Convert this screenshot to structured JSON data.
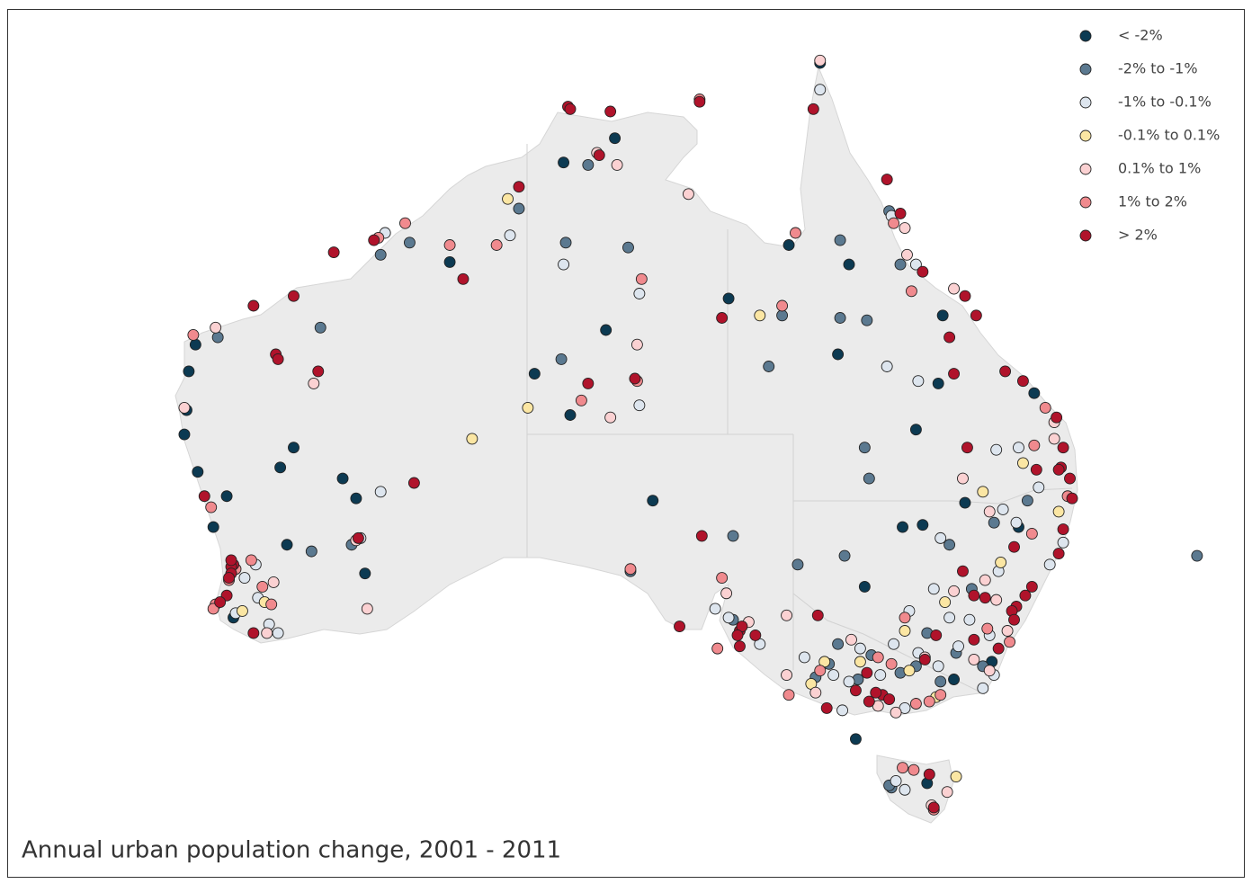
{
  "map": {
    "title": "Annual urban population change, 2001 - 2011",
    "legend": [
      {
        "label": "< -2%",
        "color": "#0c3a52",
        "points": [
          [
            114.2,
            -22.3
          ],
          [
            113.9,
            -23.4
          ],
          [
            113.8,
            -25.0
          ],
          [
            113.7,
            -26.0
          ],
          [
            114.3,
            -27.7
          ],
          [
            118.6,
            -26.6
          ],
          [
            118.0,
            -27.5
          ],
          [
            120.8,
            -28.0
          ],
          [
            121.4,
            -28.9
          ],
          [
            118.3,
            -31.0
          ],
          [
            121.8,
            -32.3
          ],
          [
            125.6,
            -18.9
          ],
          [
            129.4,
            -23.5
          ],
          [
            131.0,
            -25.2
          ],
          [
            134.7,
            -29.0
          ],
          [
            132.6,
            -21.7
          ],
          [
            138.1,
            -20.4
          ],
          [
            133.0,
            -13.8
          ],
          [
            130.7,
            -14.8
          ],
          [
            142.2,
            -10.7
          ],
          [
            143.5,
            -19.0
          ],
          [
            140.8,
            -18.2
          ],
          [
            143.0,
            -22.7
          ],
          [
            146.5,
            -25.8
          ],
          [
            145.9,
            -30.2
          ],
          [
            146.8,
            -30.1
          ],
          [
            148.7,
            -29.1
          ],
          [
            151.1,
            -30.2
          ],
          [
            144.2,
            -32.9
          ],
          [
            151.8,
            -24.3
          ],
          [
            147.7,
            -21.1
          ],
          [
            143.8,
            -39.8
          ],
          [
            148.2,
            -37.1
          ],
          [
            147.5,
            -23.9
          ],
          [
            115.6,
            -28.8
          ],
          [
            115.0,
            -30.2
          ],
          [
            115.9,
            -34.3
          ],
          [
            147.0,
            -41.8
          ],
          [
            149.9,
            -36.3
          ]
        ]
      },
      {
        "label": "-2% to -1%",
        "color": "#5b7990",
        "points": [
          [
            115.2,
            -22.0
          ],
          [
            122.5,
            -18.6
          ],
          [
            123.8,
            -18.1
          ],
          [
            119.8,
            -21.6
          ],
          [
            128.7,
            -16.7
          ],
          [
            130.8,
            -18.1
          ],
          [
            133.6,
            -18.3
          ],
          [
            130.6,
            -22.9
          ],
          [
            131.8,
            -14.9
          ],
          [
            140.5,
            -21.1
          ],
          [
            143.1,
            -21.2
          ],
          [
            144.3,
            -21.3
          ],
          [
            139.9,
            -23.2
          ],
          [
            143.1,
            -18.0
          ],
          [
            144.2,
            -26.6
          ],
          [
            144.4,
            -28.0
          ],
          [
            143.3,
            -31.5
          ],
          [
            141.2,
            -31.9
          ],
          [
            138.3,
            -30.6
          ],
          [
            133.7,
            -32.2
          ],
          [
            138.3,
            -34.4
          ],
          [
            119.4,
            -31.3
          ],
          [
            121.2,
            -31.0
          ],
          [
            159.1,
            -31.5
          ],
          [
            145.3,
            -16.8
          ],
          [
            145.8,
            -19.0
          ],
          [
            147.0,
            -35.0
          ],
          [
            146.5,
            -36.5
          ],
          [
            144.5,
            -36.0
          ],
          [
            143.0,
            -35.5
          ],
          [
            142.0,
            -37.0
          ],
          [
            147.6,
            -37.2
          ],
          [
            149.5,
            -36.5
          ],
          [
            149.0,
            -33.0
          ],
          [
            148.0,
            -31.0
          ],
          [
            150.0,
            -30.0
          ],
          [
            151.5,
            -29.0
          ],
          [
            145.4,
            -42.0
          ],
          [
            145.3,
            -41.9
          ],
          [
            142.6,
            -36.4
          ],
          [
            145.8,
            -36.8
          ],
          [
            143.9,
            -37.1
          ],
          [
            148.3,
            -35.9
          ]
        ]
      },
      {
        "label": "-1% to -0.1%",
        "color": "#dde5ee",
        "points": [
          [
            141.5,
            -36.1
          ],
          [
            142.8,
            -36.9
          ],
          [
            143.5,
            -37.2
          ],
          [
            144.0,
            -35.7
          ],
          [
            145.5,
            -35.5
          ],
          [
            146.6,
            -35.9
          ],
          [
            147.5,
            -36.5
          ],
          [
            148.4,
            -35.6
          ],
          [
            148.0,
            -34.3
          ],
          [
            147.3,
            -33.0
          ],
          [
            148.9,
            -34.4
          ],
          [
            150.2,
            -32.2
          ],
          [
            151.0,
            -30.0
          ],
          [
            150.4,
            -29.4
          ],
          [
            147.6,
            -30.7
          ],
          [
            152.0,
            -28.4
          ],
          [
            151.1,
            -26.6
          ],
          [
            150.1,
            -26.7
          ],
          [
            145.2,
            -23.2
          ],
          [
            146.6,
            -23.8
          ],
          [
            134.1,
            -24.8
          ],
          [
            134.1,
            -20.2
          ],
          [
            130.7,
            -19.0
          ],
          [
            128.3,
            -17.8
          ],
          [
            122.7,
            -17.7
          ],
          [
            122.5,
            -28.6
          ],
          [
            121.6,
            -30.7
          ],
          [
            117.9,
            -35.0
          ],
          [
            117.0,
            -33.4
          ],
          [
            116.4,
            -32.5
          ],
          [
            116.9,
            -31.9
          ],
          [
            117.5,
            -34.6
          ],
          [
            116.0,
            -34.1
          ],
          [
            146.0,
            -42.1
          ],
          [
            145.6,
            -41.7
          ],
          [
            146.5,
            -19.0
          ],
          [
            145.4,
            -17.0
          ],
          [
            153.1,
            -30.9
          ],
          [
            152.5,
            -31.9
          ],
          [
            150.0,
            -36.9
          ],
          [
            149.5,
            -37.5
          ],
          [
            146.0,
            -38.4
          ],
          [
            143.2,
            -38.5
          ],
          [
            139.5,
            -35.5
          ],
          [
            138.1,
            -34.3
          ],
          [
            137.5,
            -33.9
          ],
          [
            142.2,
            -11.8
          ],
          [
            144.9,
            -36.9
          ],
          [
            146.2,
            -34.0
          ],
          [
            149.8,
            -35.1
          ]
        ]
      },
      {
        "label": "-0.1% to 0.1%",
        "color": "#fbe6a3",
        "points": [
          [
            128.2,
            -16.3
          ],
          [
            129.1,
            -24.9
          ],
          [
            126.6,
            -26.2
          ],
          [
            139.5,
            -21.1
          ],
          [
            151.3,
            -27.3
          ],
          [
            149.5,
            -28.6
          ],
          [
            150.3,
            -31.8
          ],
          [
            147.8,
            -33.6
          ],
          [
            146.0,
            -34.9
          ],
          [
            144.0,
            -36.3
          ],
          [
            142.4,
            -36.3
          ],
          [
            141.8,
            -37.3
          ],
          [
            117.3,
            -33.6
          ],
          [
            116.3,
            -34.0
          ],
          [
            148.3,
            -41.5
          ],
          [
            146.2,
            -36.7
          ],
          [
            152.9,
            -29.5
          ],
          [
            147.4,
            -37.9
          ]
        ]
      },
      {
        "label": "0.1% to 1%",
        "color": "#fbd1d2",
        "points": [
          [
            113.7,
            -24.9
          ],
          [
            115.1,
            -21.6
          ],
          [
            121.4,
            -30.8
          ],
          [
            117.4,
            -35.0
          ],
          [
            121.9,
            -33.9
          ],
          [
            132.2,
            -14.4
          ],
          [
            136.3,
            -16.1
          ],
          [
            133.1,
            -14.9
          ],
          [
            142.2,
            -10.6
          ],
          [
            138.0,
            -33.2
          ],
          [
            140.7,
            -34.2
          ],
          [
            140.7,
            -36.9
          ],
          [
            142.0,
            -37.7
          ],
          [
            143.6,
            -35.3
          ],
          [
            146.9,
            -36.1
          ],
          [
            149.1,
            -36.2
          ],
          [
            149.8,
            -36.7
          ],
          [
            150.6,
            -34.9
          ],
          [
            150.1,
            -33.5
          ],
          [
            149.6,
            -32.6
          ],
          [
            149.8,
            -29.5
          ],
          [
            152.7,
            -26.2
          ],
          [
            152.7,
            -25.5
          ],
          [
            146.0,
            -17.5
          ],
          [
            146.1,
            -18.6
          ],
          [
            148.2,
            -20.0
          ],
          [
            148.6,
            -28.0
          ],
          [
            148.2,
            -33.1
          ],
          [
            147.2,
            -42.8
          ],
          [
            145.6,
            -38.6
          ],
          [
            119.5,
            -23.9
          ],
          [
            134.0,
            -22.3
          ],
          [
            132.8,
            -25.3
          ],
          [
            117.7,
            -32.7
          ],
          [
            144.8,
            -38.3
          ],
          [
            139.0,
            -34.5
          ],
          [
            147.9,
            -42.2
          ]
        ]
      },
      {
        "label": "1% to 2%",
        "color": "#f08a8e",
        "points": [
          [
            115.1,
            -33.7
          ],
          [
            115.0,
            -33.9
          ],
          [
            114.9,
            -29.3
          ],
          [
            114.1,
            -21.9
          ],
          [
            123.6,
            -17.3
          ],
          [
            125.6,
            -18.2
          ],
          [
            127.7,
            -18.2
          ],
          [
            134.2,
            -19.6
          ],
          [
            134.0,
            -23.8
          ],
          [
            133.7,
            -32.1
          ],
          [
            137.8,
            -32.5
          ],
          [
            137.6,
            -35.7
          ],
          [
            140.8,
            -37.8
          ],
          [
            142.2,
            -36.7
          ],
          [
            145.4,
            -36.4
          ],
          [
            144.8,
            -36.1
          ],
          [
            146.5,
            -38.2
          ],
          [
            147.6,
            -37.8
          ],
          [
            147.1,
            -38.1
          ],
          [
            146.0,
            -34.3
          ],
          [
            149.7,
            -34.8
          ],
          [
            151.7,
            -30.5
          ],
          [
            153.3,
            -28.8
          ],
          [
            151.8,
            -26.5
          ],
          [
            152.3,
            -24.9
          ],
          [
            146.3,
            -20.1
          ],
          [
            145.5,
            -17.3
          ],
          [
            140.5,
            -20.7
          ],
          [
            141.1,
            -17.7
          ],
          [
            146.4,
            -41.2
          ],
          [
            145.9,
            -41.1
          ],
          [
            147.3,
            -43.0
          ],
          [
            122.4,
            -17.9
          ],
          [
            116.0,
            -32.1
          ],
          [
            116.7,
            -31.7
          ],
          [
            117.2,
            -32.9
          ],
          [
            115.7,
            -32.6
          ],
          [
            117.6,
            -33.7
          ],
          [
            136.8,
            -12.2
          ],
          [
            131.5,
            -24.6
          ],
          [
            150.7,
            -35.4
          ]
        ]
      },
      {
        "label": "> 2%",
        "color": "#b0132b",
        "points": [
          [
            130.9,
            -12.5
          ],
          [
            131.0,
            -12.6
          ],
          [
            115.9,
            -31.9
          ],
          [
            115.8,
            -32.0
          ],
          [
            115.8,
            -32.3
          ],
          [
            115.7,
            -32.5
          ],
          [
            115.6,
            -33.3
          ],
          [
            115.3,
            -33.6
          ],
          [
            115.8,
            -31.7
          ],
          [
            114.6,
            -28.8
          ],
          [
            118.6,
            -20.3
          ],
          [
            116.8,
            -20.7
          ],
          [
            122.2,
            -18.0
          ],
          [
            128.7,
            -15.8
          ],
          [
            119.7,
            -23.4
          ],
          [
            117.8,
            -22.7
          ],
          [
            133.9,
            -23.7
          ],
          [
            131.8,
            -23.9
          ],
          [
            136.8,
            -12.3
          ],
          [
            132.3,
            -14.5
          ],
          [
            132.8,
            -12.7
          ],
          [
            141.9,
            -12.6
          ],
          [
            145.2,
            -15.5
          ],
          [
            145.8,
            -16.9
          ],
          [
            146.8,
            -19.3
          ],
          [
            149.2,
            -21.1
          ],
          [
            150.5,
            -23.4
          ],
          [
            151.3,
            -23.8
          ],
          [
            152.8,
            -25.3
          ],
          [
            153.1,
            -26.6
          ],
          [
            153.0,
            -27.5
          ],
          [
            152.9,
            -27.6
          ],
          [
            153.4,
            -28.0
          ],
          [
            151.9,
            -27.6
          ],
          [
            153.5,
            -28.9
          ],
          [
            153.1,
            -30.3
          ],
          [
            152.9,
            -31.4
          ],
          [
            151.7,
            -32.9
          ],
          [
            151.4,
            -33.3
          ],
          [
            151.0,
            -33.8
          ],
          [
            150.8,
            -34.0
          ],
          [
            150.9,
            -34.4
          ],
          [
            149.1,
            -35.3
          ],
          [
            150.2,
            -35.7
          ],
          [
            145.0,
            -37.8
          ],
          [
            144.7,
            -37.7
          ],
          [
            145.3,
            -38.0
          ],
          [
            144.4,
            -38.1
          ],
          [
            143.8,
            -37.6
          ],
          [
            144.3,
            -36.8
          ],
          [
            138.6,
            -34.9
          ],
          [
            138.7,
            -34.7
          ],
          [
            138.5,
            -35.1
          ],
          [
            139.3,
            -35.1
          ],
          [
            138.6,
            -35.6
          ],
          [
            135.9,
            -34.7
          ],
          [
            136.9,
            -30.6
          ],
          [
            147.3,
            -42.9
          ],
          [
            147.1,
            -41.4
          ],
          [
            121.5,
            -30.7
          ],
          [
            116.8,
            -35.0
          ],
          [
            137.8,
            -21.2
          ],
          [
            142.1,
            -34.2
          ],
          [
            146.9,
            -36.2
          ],
          [
            142.5,
            -38.4
          ],
          [
            147.4,
            -35.1
          ],
          [
            149.1,
            -33.3
          ],
          [
            149.6,
            -33.4
          ],
          [
            148.6,
            -32.2
          ],
          [
            150.9,
            -31.1
          ],
          [
            148.2,
            -23.5
          ],
          [
            148.0,
            -22.0
          ],
          [
            148.8,
            -26.6
          ],
          [
            148.7,
            -20.3
          ],
          [
            126.2,
            -19.6
          ],
          [
            120.4,
            -18.5
          ],
          [
            117.9,
            -22.9
          ],
          [
            124.0,
            -28.2
          ]
        ]
      }
    ]
  }
}
